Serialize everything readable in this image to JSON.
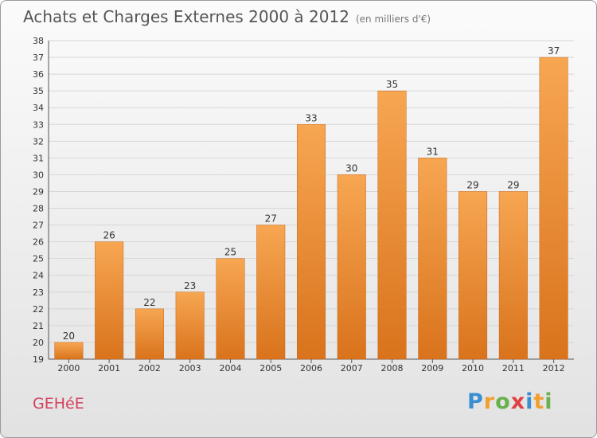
{
  "chart_data": {
    "type": "bar",
    "title": "Achats et Charges Externes 2000 à 2012",
    "subtitle": "(en milliers d'€)",
    "categories": [
      "2000",
      "2001",
      "2002",
      "2003",
      "2004",
      "2005",
      "2006",
      "2007",
      "2008",
      "2009",
      "2010",
      "2011",
      "2012"
    ],
    "values": [
      20,
      26,
      22,
      23,
      25,
      27,
      33,
      30,
      35,
      31,
      29,
      29,
      37
    ],
    "ylim": [
      19,
      38
    ],
    "yticks": [
      19,
      20,
      21,
      22,
      23,
      24,
      25,
      26,
      27,
      28,
      29,
      30,
      31,
      32,
      33,
      34,
      35,
      36,
      37,
      38
    ],
    "xlabel": "",
    "ylabel": "",
    "grid": true,
    "bar_color": "#f0963c"
  },
  "footer": {
    "commune": "GEHéE",
    "logo": [
      "P",
      "r",
      "o",
      "x",
      "i",
      "t",
      "i"
    ]
  }
}
